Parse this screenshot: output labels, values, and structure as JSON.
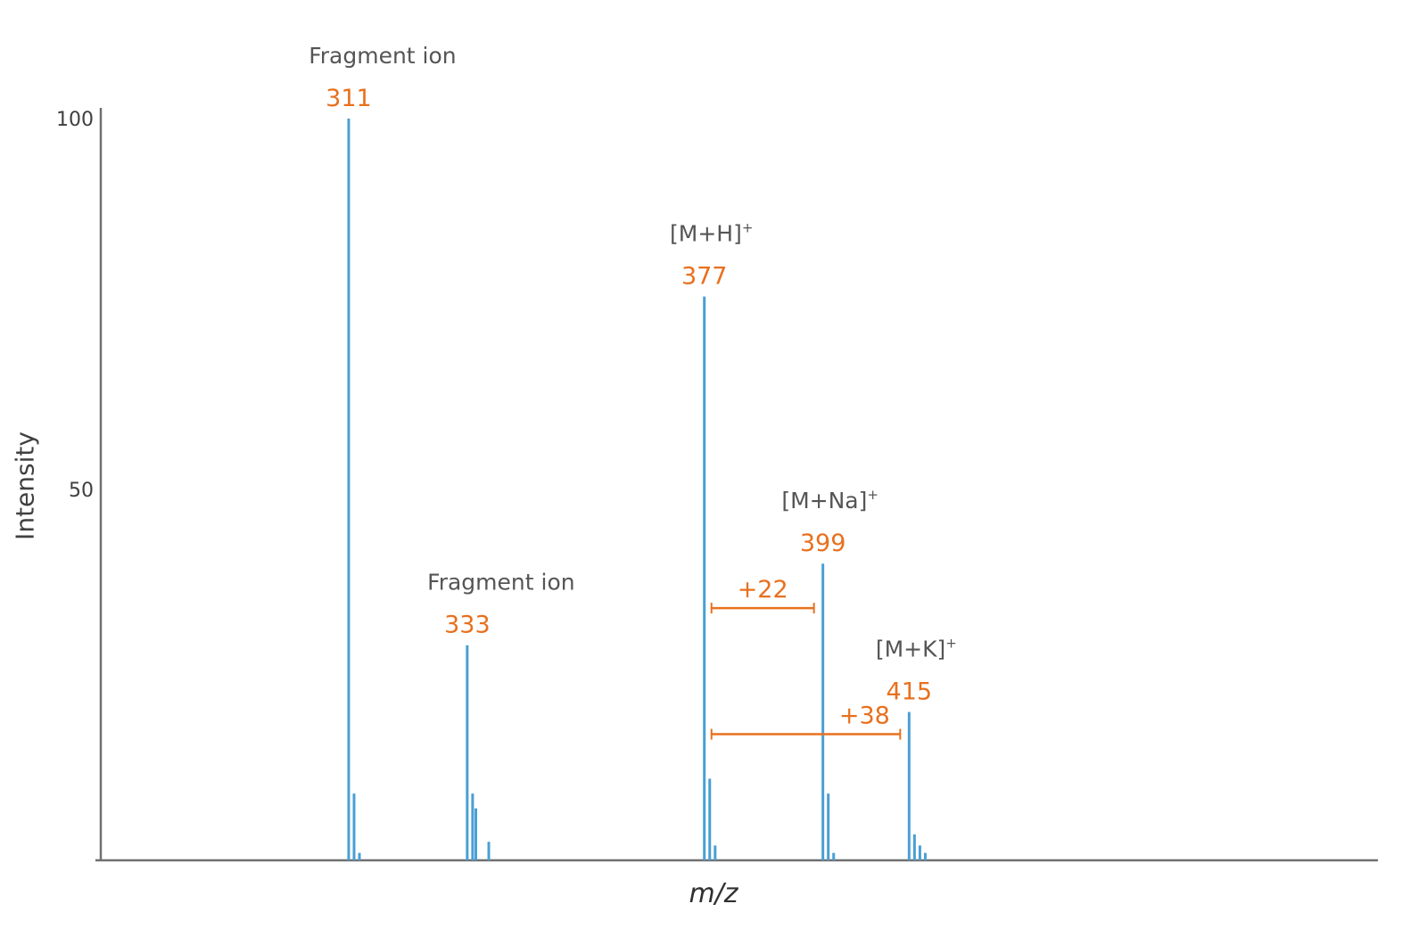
{
  "chart_data": {
    "type": "bar",
    "xlabel": "m/z",
    "ylabel": "Intensity",
    "y_ticks": [
      "100",
      "50"
    ],
    "ylim": [
      0,
      100
    ],
    "xlim": [
      265,
      502
    ],
    "colors": {
      "peak": "#4a9fd4",
      "label_value": "#e8701e",
      "label_text": "#555555",
      "axis": "#707070"
    },
    "peaks": [
      {
        "mz": 311,
        "intensity": 100
      },
      {
        "mz": 312,
        "intensity": 9
      },
      {
        "mz": 313,
        "intensity": 1
      },
      {
        "mz": 333,
        "intensity": 29
      },
      {
        "mz": 334,
        "intensity": 9
      },
      {
        "mz": 334.6,
        "intensity": 7
      },
      {
        "mz": 337,
        "intensity": 2.5
      },
      {
        "mz": 377,
        "intensity": 76
      },
      {
        "mz": 378,
        "intensity": 11
      },
      {
        "mz": 379,
        "intensity": 2
      },
      {
        "mz": 399,
        "intensity": 40
      },
      {
        "mz": 400,
        "intensity": 9
      },
      {
        "mz": 401,
        "intensity": 1
      },
      {
        "mz": 415,
        "intensity": 20
      },
      {
        "mz": 416,
        "intensity": 3.5
      },
      {
        "mz": 417,
        "intensity": 2
      },
      {
        "mz": 418,
        "intensity": 1
      }
    ],
    "annotations": [
      {
        "mz": 311,
        "intensity": 100,
        "value": "311",
        "label": "Fragment ion",
        "superscript": ""
      },
      {
        "mz": 333,
        "intensity": 29,
        "value": "333",
        "label": "Fragment ion",
        "superscript": ""
      },
      {
        "mz": 377,
        "intensity": 76,
        "value": "377",
        "label": "[M+H]",
        "superscript": "+"
      },
      {
        "mz": 399,
        "intensity": 40,
        "value": "399",
        "label": "[M+Na]",
        "superscript": "+"
      },
      {
        "mz": 415,
        "intensity": 20,
        "value": "415",
        "label": "[M+K]",
        "superscript": "+"
      }
    ],
    "differences": [
      {
        "from": 377,
        "to": 399,
        "level": 34,
        "label": "+22"
      },
      {
        "from": 377,
        "to": 415,
        "level": 17,
        "label": "+38"
      }
    ]
  }
}
